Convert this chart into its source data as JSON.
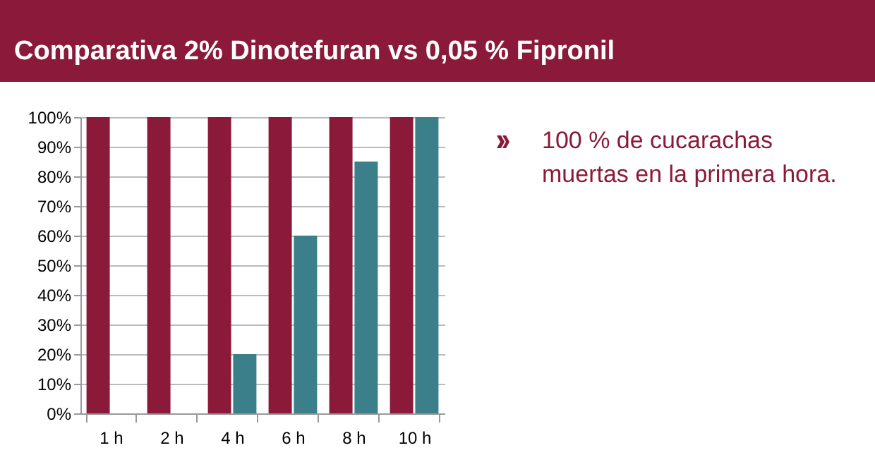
{
  "chart_data": {
    "type": "bar",
    "title": "Comparativa 2% Dinotefuran vs 0,05 % Fipronil",
    "categories": [
      "1 h",
      "2 h",
      "4 h",
      "6 h",
      "8 h",
      "10 h"
    ],
    "series": [
      {
        "color": "#8b1a3a",
        "values": [
          100,
          100,
          100,
          100,
          100,
          100
        ]
      },
      {
        "color": "#3b7f8a",
        "values": [
          0,
          0,
          20,
          60,
          85,
          100
        ]
      }
    ],
    "ylim": [
      0,
      100
    ],
    "yticks": [
      {
        "value": 0,
        "label": "0%"
      },
      {
        "value": 10,
        "label": "10%"
      },
      {
        "value": 20,
        "label": "20%"
      },
      {
        "value": 30,
        "label": "30%"
      },
      {
        "value": 40,
        "label": "40%"
      },
      {
        "value": 50,
        "label": "50%"
      },
      {
        "value": 60,
        "label": "60%"
      },
      {
        "value": 70,
        "label": "70%"
      },
      {
        "value": 80,
        "label": "80%"
      },
      {
        "value": 90,
        "label": "90%"
      },
      {
        "value": 100,
        "label": "100%"
      }
    ],
    "grid": "y",
    "annotations": [
      "100 % de cucarachas muertas en la primera hora."
    ]
  }
}
